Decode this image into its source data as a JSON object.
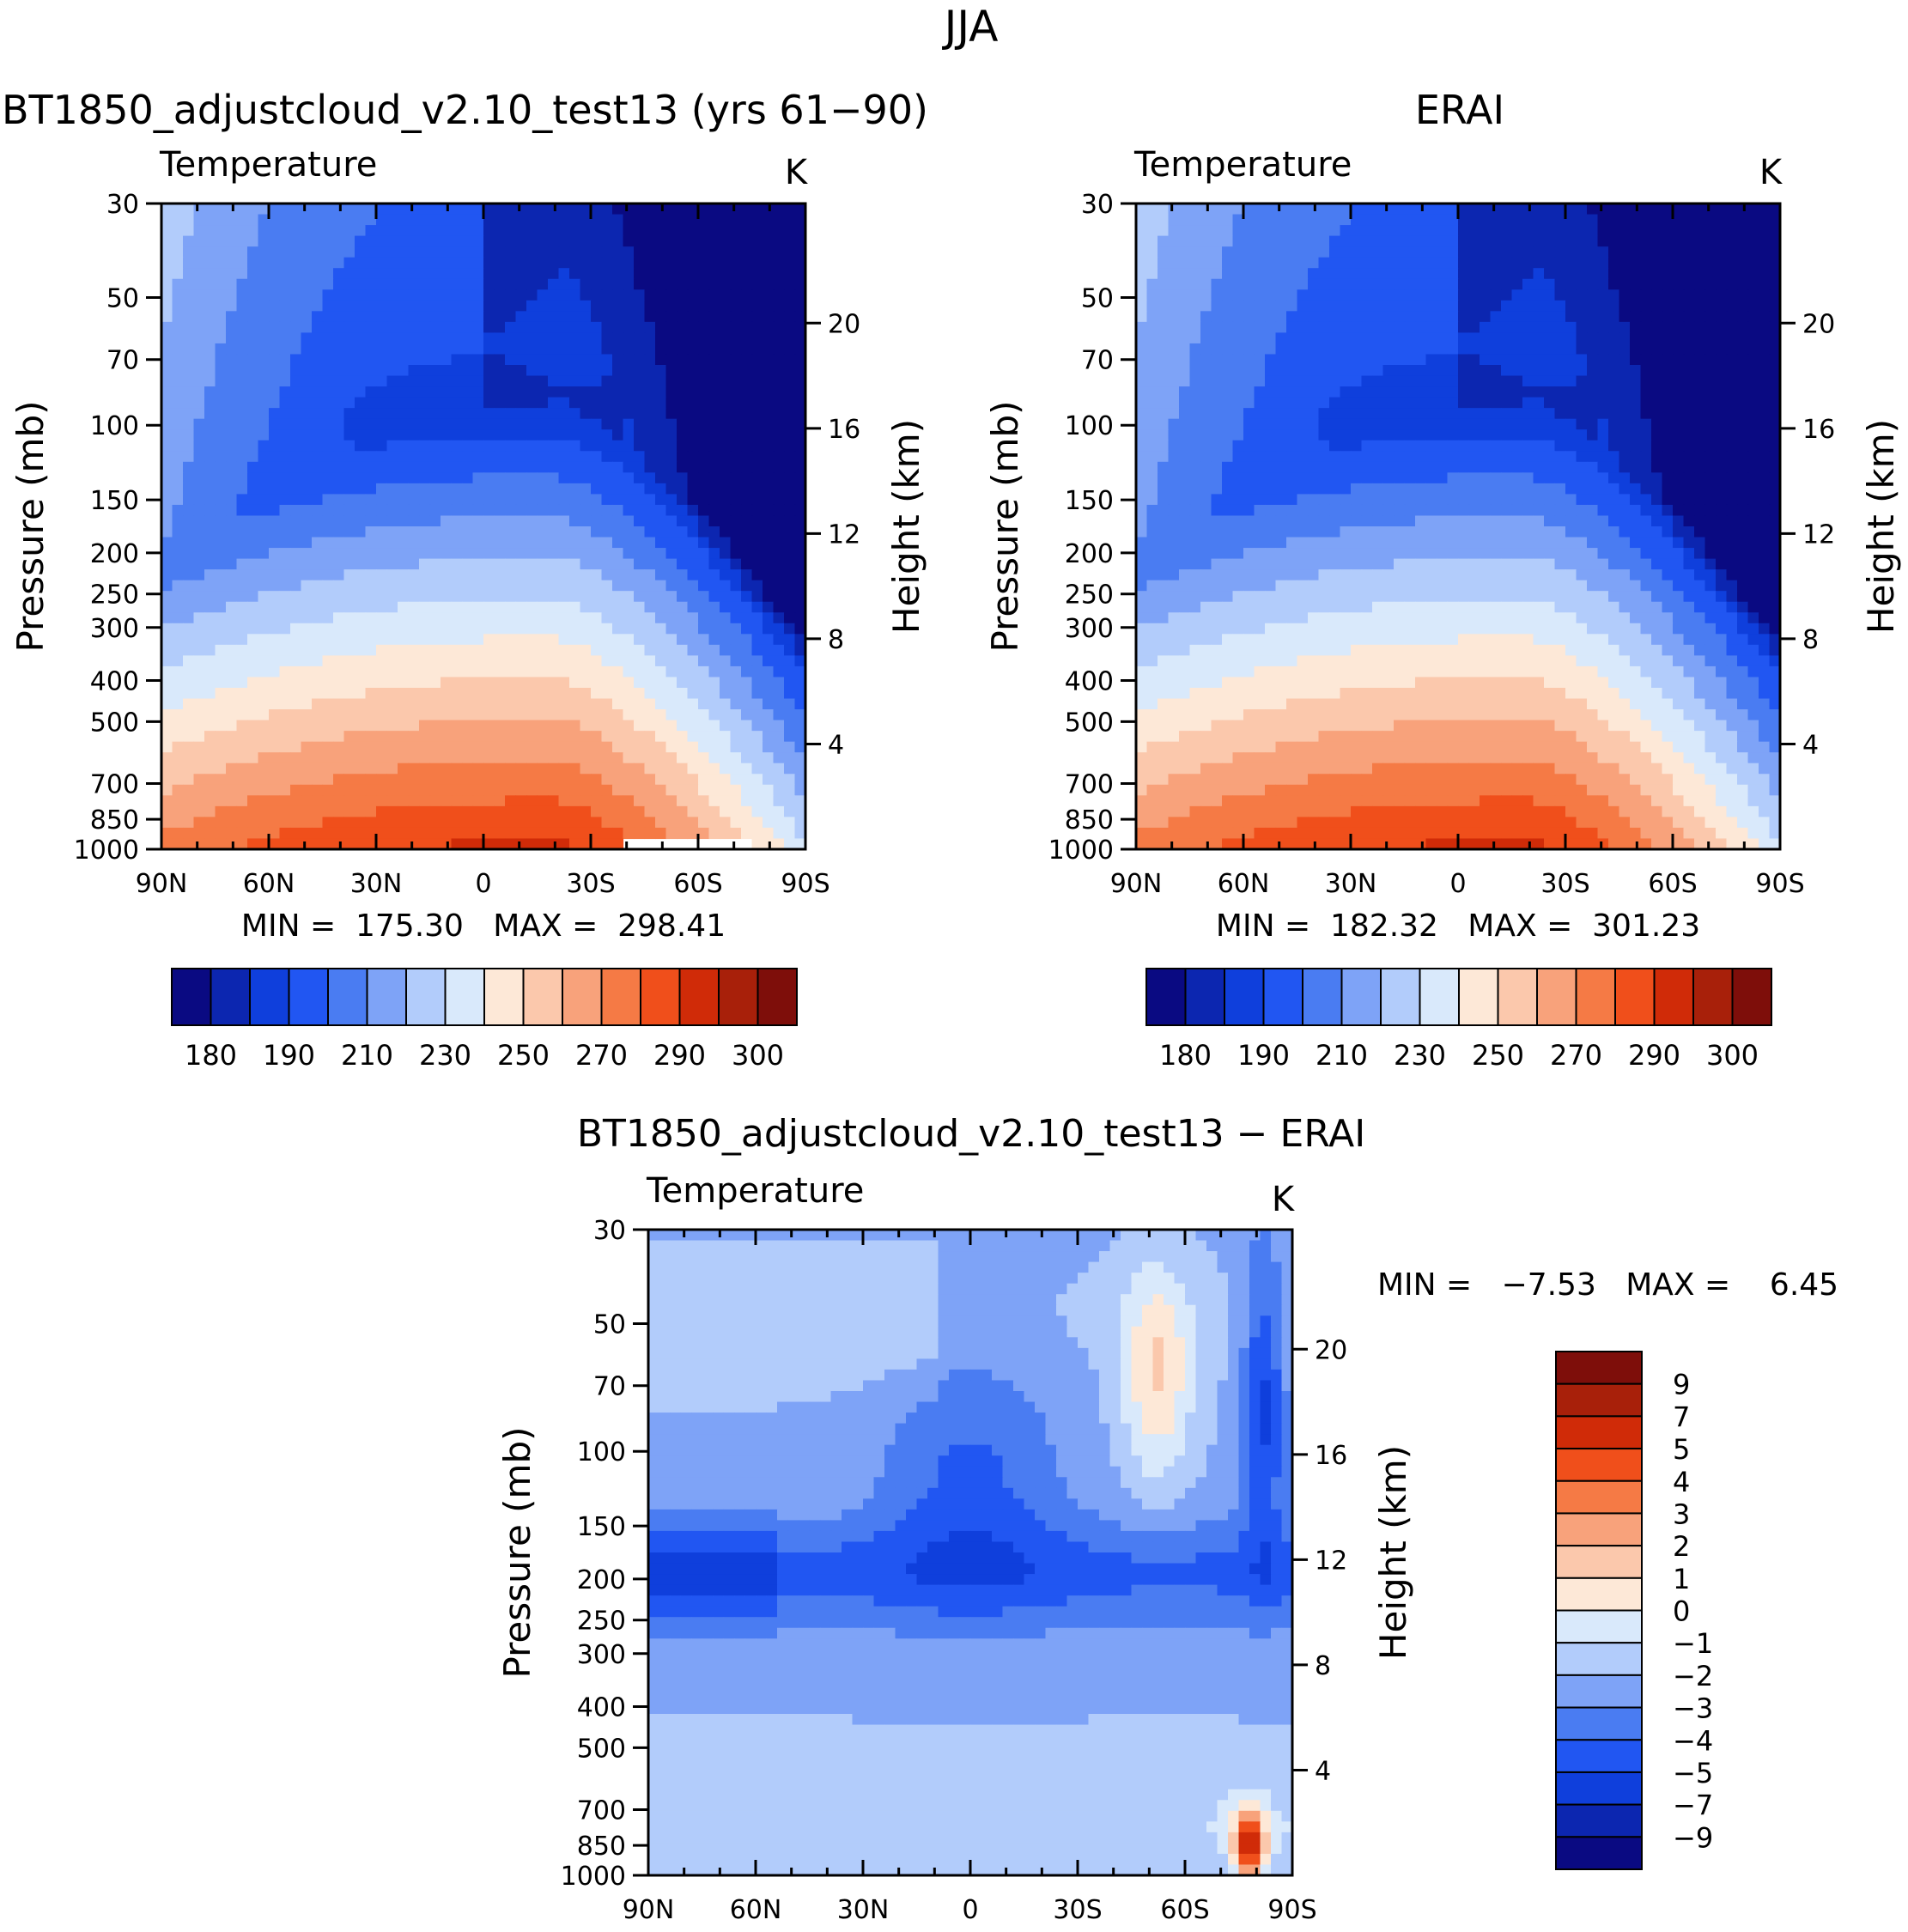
{
  "figure": {
    "title": "JJA"
  },
  "palettes": {
    "temperature": [
      "#0a0a82",
      "#0c26b0",
      "#0f3fdc",
      "#2156f2",
      "#4a7cf2",
      "#7ea3f7",
      "#b2ccfb",
      "#d9e9fb",
      "#fde8d7",
      "#fbc8ac",
      "#f8a27b",
      "#f57a45",
      "#f04f1b",
      "#d02b08",
      "#a8200a",
      "#7e0e0a"
    ],
    "difference": [
      "#0a0a82",
      "#0c26b0",
      "#0f3fdc",
      "#2156f2",
      "#4a7cf2",
      "#7ea3f7",
      "#b2ccfb",
      "#d9e9fb",
      "#fde8d7",
      "#fbc8ac",
      "#f8a27b",
      "#f57a45",
      "#f04f1b",
      "#d02b08",
      "#a8200a",
      "#7e0e0a"
    ]
  },
  "chart_data": [
    {
      "type": "contour",
      "title": "BT1850_adjustcloud_v2.10_test13 (yrs 61−90)",
      "left_label": "Temperature",
      "right_label": "K",
      "xlabel": "",
      "ylabel": "Pressure (mb)",
      "ylabel_right": "Height (km)",
      "x_ticks": [
        "90N",
        "60N",
        "30N",
        "0",
        "30S",
        "60S",
        "90S"
      ],
      "y_ticks": [
        "30",
        "50",
        "70",
        "100",
        "150",
        "200",
        "250",
        "300",
        "400",
        "500",
        "700",
        "850",
        "1000"
      ],
      "y_right_ticks": [
        "20",
        "16",
        "12",
        "8",
        "4"
      ],
      "ylim": [
        1000,
        30
      ],
      "stats": "MIN =  175.30   MAX =  298.41",
      "colorbar_labels": [
        "180",
        "190",
        "210",
        "230",
        "250",
        "270",
        "290",
        "300"
      ],
      "field": {
        "base": 200,
        "polar_amp": 14,
        "trop_amp": 20,
        "ocean_gap": true
      }
    },
    {
      "type": "contour",
      "title": "ERAI",
      "left_label": "Temperature",
      "right_label": "K",
      "xlabel": "",
      "ylabel": "Pressure (mb)",
      "ylabel_right": "Height (km)",
      "x_ticks": [
        "90N",
        "60N",
        "30N",
        "0",
        "30S",
        "60S",
        "90S"
      ],
      "y_ticks": [
        "30",
        "50",
        "70",
        "100",
        "150",
        "200",
        "250",
        "300",
        "400",
        "500",
        "700",
        "850",
        "1000"
      ],
      "y_right_ticks": [
        "20",
        "16",
        "12",
        "8",
        "4"
      ],
      "ylim": [
        1000,
        30
      ],
      "stats": "MIN =  182.32   MAX =  301.23",
      "colorbar_labels": [
        "180",
        "190",
        "210",
        "230",
        "250",
        "270",
        "290",
        "300"
      ],
      "field": {
        "base": 202,
        "polar_amp": 12,
        "trop_amp": 19,
        "ocean_gap": false
      }
    },
    {
      "type": "contour",
      "title": "BT1850_adjustcloud_v2.10_test13 − ERAI",
      "left_label": "Temperature",
      "right_label": "K",
      "xlabel": "",
      "ylabel": "Pressure (mb)",
      "ylabel_right": "Height (km)",
      "x_ticks": [
        "90N",
        "60N",
        "30N",
        "0",
        "30S",
        "60S",
        "90S"
      ],
      "y_ticks": [
        "30",
        "50",
        "70",
        "100",
        "150",
        "200",
        "250",
        "300",
        "400",
        "500",
        "700",
        "850",
        "1000"
      ],
      "y_right_ticks": [
        "20",
        "16",
        "12",
        "8",
        "4"
      ],
      "ylim": [
        1000,
        30
      ],
      "stats": "MIN =   −7.53   MAX =    6.45",
      "colorbar_labels": [
        "9",
        "7",
        "5",
        "4",
        "3",
        "2",
        "1",
        "0",
        "−1",
        "−2",
        "−3",
        "−4",
        "−5",
        "−7",
        "−9"
      ]
    }
  ]
}
